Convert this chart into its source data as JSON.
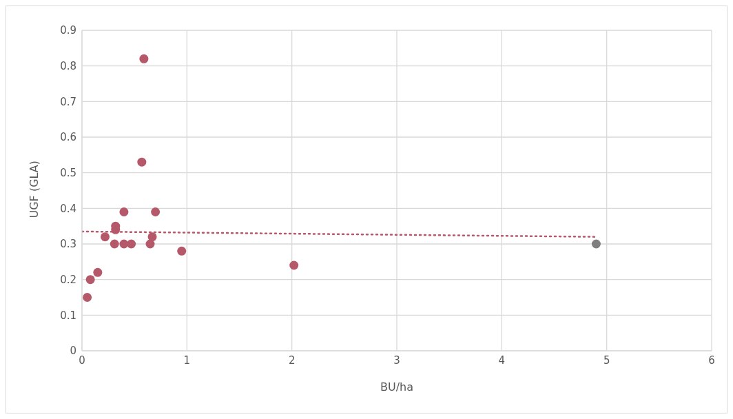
{
  "chart_data": {
    "type": "scatter",
    "xlabel": "BU/ha",
    "ylabel": "UGF (GLA)",
    "xlim": [
      0,
      6
    ],
    "xticks": [
      0,
      1,
      2,
      3,
      4,
      5,
      6
    ],
    "ylim": [
      0,
      0.9
    ],
    "yticks": [
      0,
      0.1,
      0.2,
      0.3,
      0.4,
      0.5,
      0.6,
      0.7,
      0.8,
      0.9
    ],
    "grid": true,
    "marker": "circle",
    "series": [
      {
        "color": "#b5586a",
        "x": [
          0.05,
          0.08,
          0.15,
          0.22,
          0.31,
          0.32,
          0.32,
          0.4,
          0.47,
          0.4,
          0.57,
          0.59,
          0.65,
          0.67,
          0.7,
          0.95,
          2.02,
          4.9
        ],
        "values": [
          0.15,
          0.2,
          0.22,
          0.32,
          0.3,
          0.34,
          0.35,
          0.3,
          0.3,
          0.39,
          0.53,
          0.82,
          0.3,
          0.32,
          0.39,
          0.28,
          0.24,
          0.3
        ],
        "colors": [
          "#b5586a",
          "#b5586a",
          "#b5586a",
          "#b5586a",
          "#b5586a",
          "#b5586a",
          "#b5586a",
          "#b5586a",
          "#b5586a",
          "#b5586a",
          "#b5586a",
          "#b5586a",
          "#b5586a",
          "#b5586a",
          "#b5586a",
          "#b5586a",
          "#b5586a",
          "#7f7f7f"
        ]
      },
      {
        "type": "line",
        "color": "#b5586a",
        "line_style": "dotted",
        "marker": "none",
        "x": [
          0,
          4.9
        ],
        "values": [
          0.335,
          0.32
        ]
      }
    ]
  }
}
